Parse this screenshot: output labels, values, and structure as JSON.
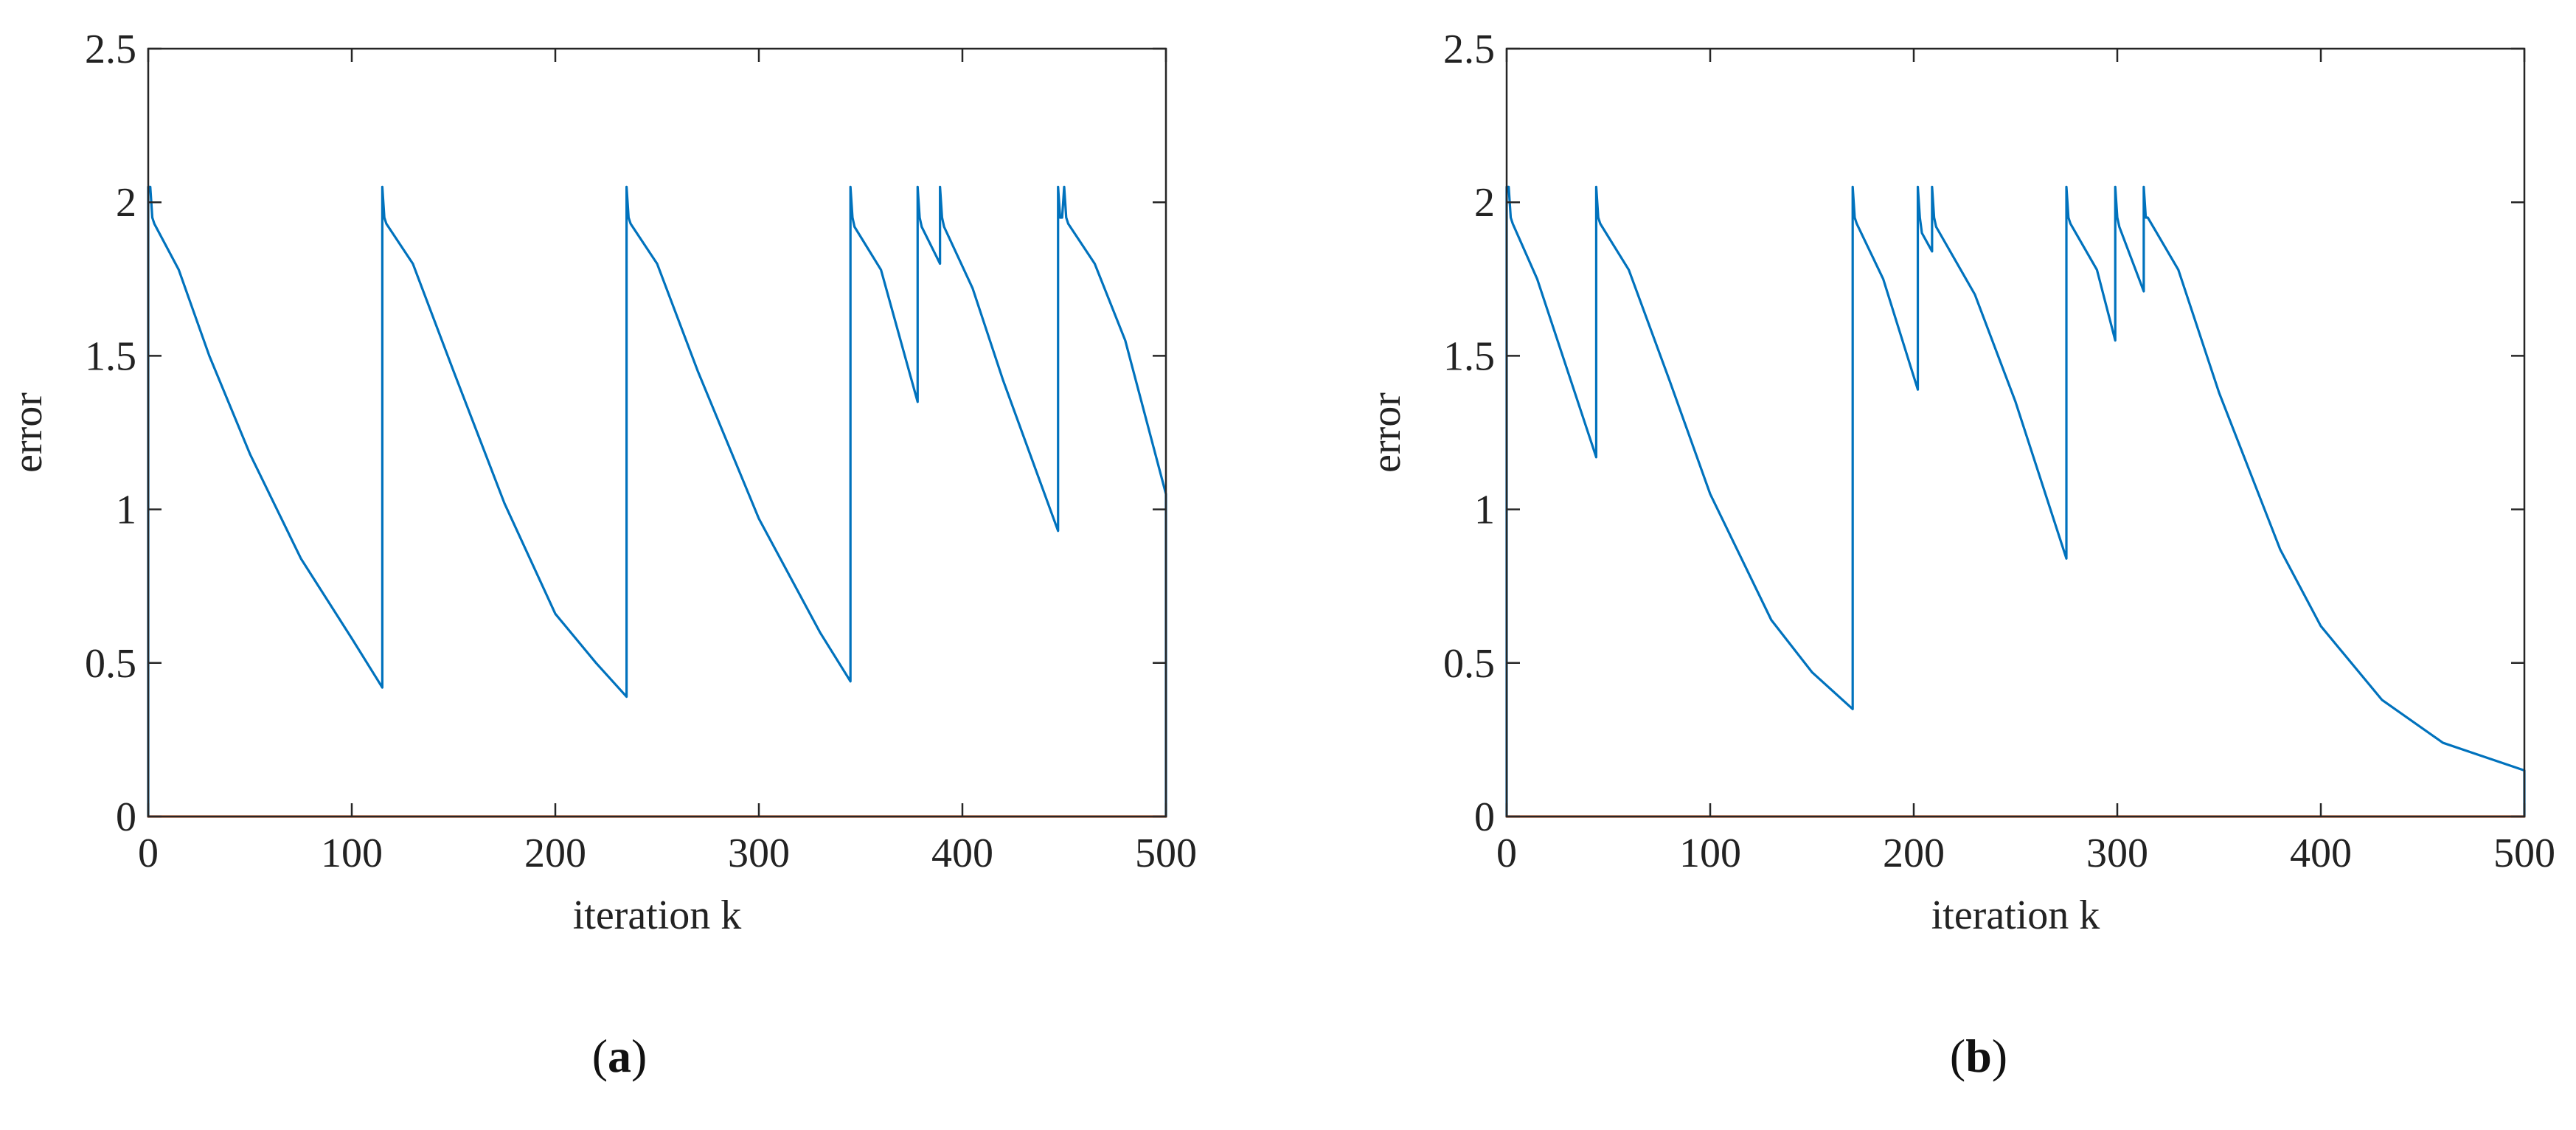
{
  "colors": {
    "error_series": "#0072BD",
    "zero_series": "#D95319",
    "axes": "#262626",
    "background": "#ffffff"
  },
  "chart_data": [
    {
      "type": "line",
      "panel": "a",
      "panel_label_open": "(",
      "panel_label_letter": "a",
      "panel_label_close": ")",
      "xlabel": "iteration k",
      "ylabel": "error",
      "xlim": [
        0,
        500
      ],
      "ylim": [
        0,
        2.5
      ],
      "xticks": [
        0,
        100,
        200,
        300,
        400,
        500
      ],
      "xtick_labels": [
        "0",
        "100",
        "200",
        "300",
        "400",
        "500"
      ],
      "yticks": [
        0,
        0.5,
        1,
        1.5,
        2,
        2.5
      ],
      "ytick_labels": [
        "0",
        "0.5",
        "1",
        "1.5",
        "2",
        "2.5"
      ],
      "series": [
        {
          "name": "error",
          "color": "#0072BD",
          "x": [
            0,
            0,
            1,
            2,
            3,
            15,
            30,
            50,
            75,
            100,
            115,
            115,
            116,
            117,
            130,
            150,
            175,
            200,
            220,
            235,
            235,
            236,
            237,
            250,
            270,
            300,
            330,
            345,
            345,
            346,
            347,
            360,
            378,
            378,
            379,
            380,
            389,
            389,
            390,
            391,
            405,
            420,
            447,
            447,
            448,
            449,
            450,
            450,
            451,
            452,
            465,
            480,
            500,
            500
          ],
          "y": [
            0,
            2.05,
            2.05,
            1.95,
            1.93,
            1.78,
            1.5,
            1.18,
            0.84,
            0.58,
            0.42,
            2.05,
            1.95,
            1.93,
            1.8,
            1.45,
            1.02,
            0.66,
            0.5,
            0.39,
            2.05,
            1.95,
            1.93,
            1.8,
            1.45,
            0.97,
            0.6,
            0.44,
            2.05,
            1.95,
            1.92,
            1.78,
            1.35,
            2.05,
            1.95,
            1.92,
            1.8,
            2.05,
            1.95,
            1.92,
            1.72,
            1.42,
            0.93,
            2.05,
            1.95,
            1.95,
            2.05,
            2.05,
            1.95,
            1.93,
            1.8,
            1.55,
            1.05,
            0
          ]
        },
        {
          "name": "zero",
          "color": "#D95319",
          "x": [
            0,
            500
          ],
          "y": [
            0,
            0
          ]
        }
      ]
    },
    {
      "type": "line",
      "panel": "b",
      "panel_label_open": "(",
      "panel_label_letter": "b",
      "panel_label_close": ")",
      "xlabel": "iteration k",
      "ylabel": "error",
      "xlim": [
        0,
        500
      ],
      "ylim": [
        0,
        2.5
      ],
      "xticks": [
        0,
        100,
        200,
        300,
        400,
        500
      ],
      "xtick_labels": [
        "0",
        "100",
        "200",
        "300",
        "400",
        "500"
      ],
      "yticks": [
        0,
        0.5,
        1,
        1.5,
        2,
        2.5
      ],
      "ytick_labels": [
        "0",
        "0.5",
        "1",
        "1.5",
        "2",
        "2.5"
      ],
      "series": [
        {
          "name": "error",
          "color": "#0072BD",
          "x": [
            0,
            0,
            1,
            2,
            3,
            15,
            30,
            44,
            44,
            45,
            46,
            60,
            80,
            100,
            130,
            150,
            170,
            170,
            171,
            172,
            185,
            202,
            202,
            203,
            204,
            209,
            209,
            210,
            211,
            230,
            250,
            275,
            275,
            276,
            277,
            290,
            299,
            299,
            300,
            301,
            313,
            313,
            314,
            315,
            330,
            350,
            380,
            400,
            430,
            460,
            500,
            500
          ],
          "y": [
            0,
            2.05,
            2.05,
            1.95,
            1.93,
            1.75,
            1.45,
            1.17,
            2.05,
            1.95,
            1.93,
            1.78,
            1.42,
            1.05,
            0.64,
            0.47,
            0.35,
            2.05,
            1.95,
            1.93,
            1.75,
            1.39,
            2.05,
            1.95,
            1.9,
            1.84,
            2.05,
            1.95,
            1.92,
            1.7,
            1.35,
            0.84,
            2.05,
            1.95,
            1.93,
            1.78,
            1.55,
            2.05,
            1.95,
            1.92,
            1.71,
            2.05,
            1.95,
            1.95,
            1.78,
            1.38,
            0.87,
            0.62,
            0.38,
            0.24,
            0.15,
            0
          ]
        },
        {
          "name": "zero",
          "color": "#D95319",
          "x": [
            0,
            500
          ],
          "y": [
            0,
            0
          ]
        }
      ]
    }
  ]
}
